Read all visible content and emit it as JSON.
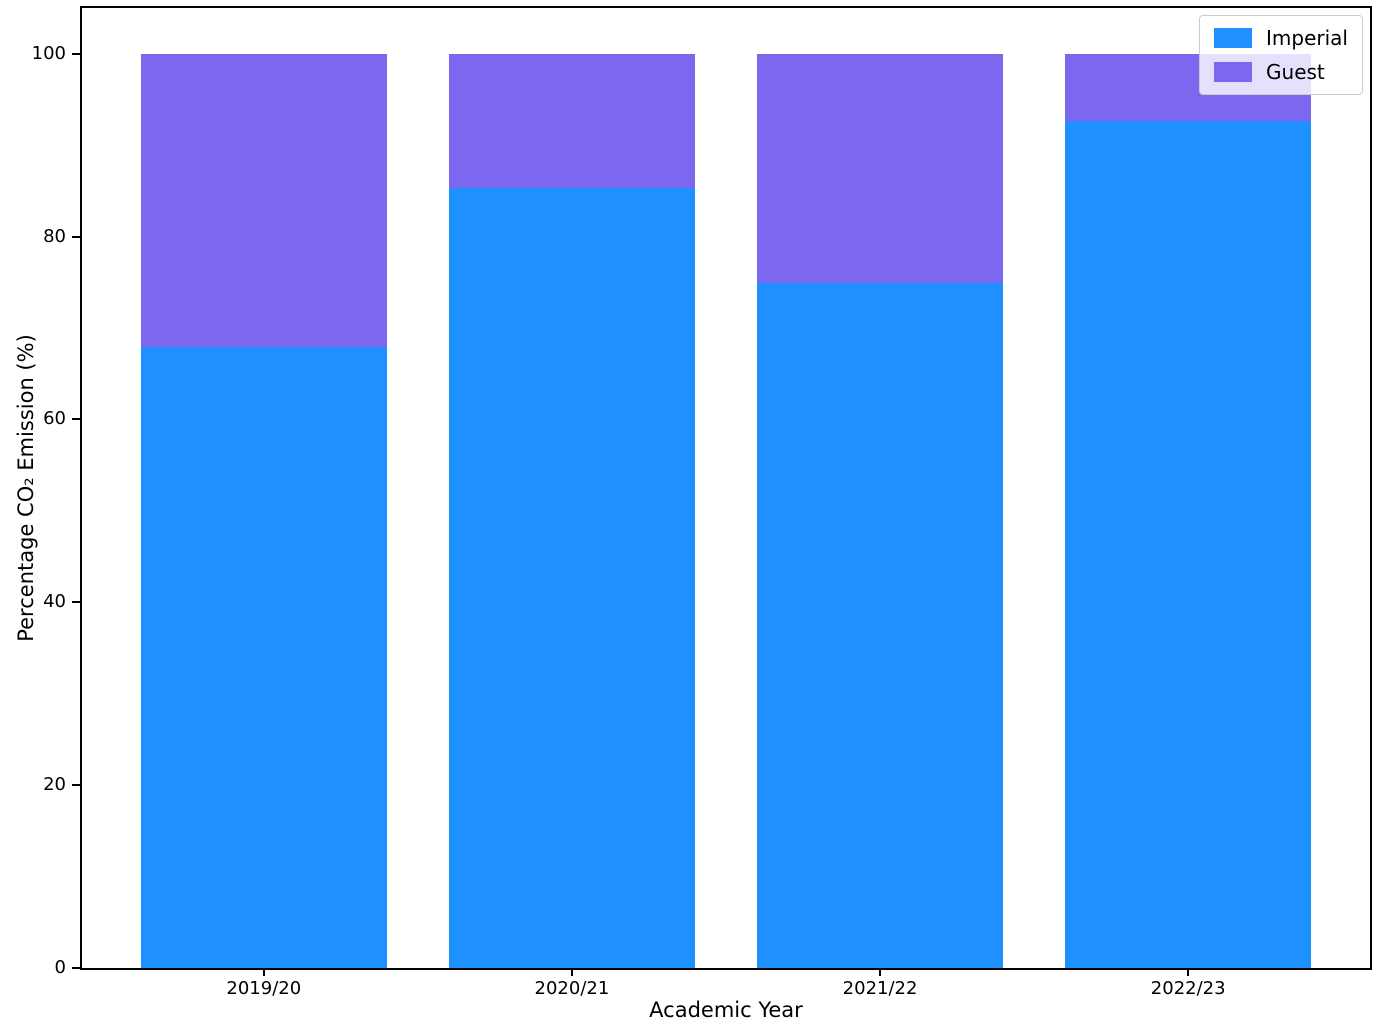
{
  "chart_data": {
    "type": "bar",
    "stacked": true,
    "title": "",
    "xlabel": "Academic Year",
    "ylabel": "Percentage CO₂ Emission (%)",
    "categories": [
      "2019/20",
      "2020/21",
      "2021/22",
      "2022/23"
    ],
    "series": [
      {
        "name": "Imperial",
        "color": "#1E90FF",
        "values": [
          67.9,
          85.3,
          74.9,
          92.6
        ]
      },
      {
        "name": "Guest",
        "color": "#7B68EE",
        "values": [
          32.1,
          14.7,
          25.1,
          7.4
        ]
      }
    ],
    "ylim": [
      0,
      105
    ],
    "yticks": [
      0,
      20,
      40,
      60,
      80,
      100
    ],
    "grid": false,
    "legend_position": "upper right"
  }
}
